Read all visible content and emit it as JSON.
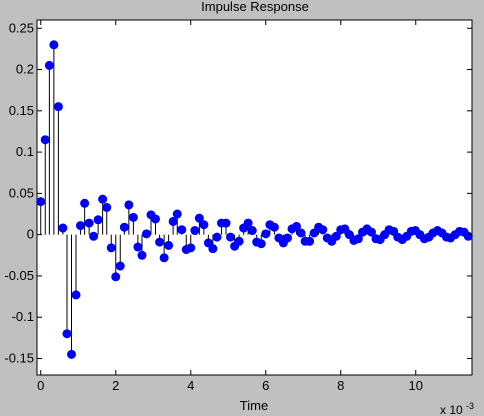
{
  "chart_data": {
    "type": "stem",
    "title": "Impulse Response",
    "xlabel": "Time",
    "x_exponent": "x 10",
    "x_exponent_power": "-3",
    "ylabel": "",
    "xlim": [
      -0.1,
      11.5
    ],
    "ylim": [
      -0.17,
      0.26
    ],
    "x_ticks": [
      {
        "value": 0,
        "label": "0"
      },
      {
        "value": 2,
        "label": "2"
      },
      {
        "value": 4,
        "label": "4"
      },
      {
        "value": 6,
        "label": "6"
      },
      {
        "value": 8,
        "label": "8"
      },
      {
        "value": 10,
        "label": "10"
      }
    ],
    "y_ticks": [
      {
        "value": 0.25,
        "label": "0.25"
      },
      {
        "value": 0.2,
        "label": "0.2"
      },
      {
        "value": 0.15,
        "label": "0.15"
      },
      {
        "value": 0.1,
        "label": "0.1"
      },
      {
        "value": 0.05,
        "label": "0.05"
      },
      {
        "value": 0,
        "label": "0"
      },
      {
        "value": -0.05,
        "label": "-0.05"
      },
      {
        "value": -0.1,
        "label": "-0.1"
      },
      {
        "value": -0.15,
        "label": "-0.15"
      }
    ],
    "grid": false,
    "marker_color": "#0000ff",
    "x": [
      0,
      0.12,
      0.23,
      0.35,
      0.47,
      0.59,
      0.7,
      0.82,
      0.94,
      1.06,
      1.17,
      1.29,
      1.41,
      1.53,
      1.65,
      1.76,
      1.88,
      2.0,
      2.12,
      2.23,
      2.35,
      2.47,
      2.59,
      2.7,
      2.82,
      2.94,
      3.06,
      3.17,
      3.29,
      3.41,
      3.53,
      3.64,
      3.76,
      3.88,
      4.0,
      4.11,
      4.23,
      4.35,
      4.47,
      4.59,
      4.7,
      4.82,
      4.94,
      5.06,
      5.17,
      5.29,
      5.41,
      5.53,
      5.64,
      5.76,
      5.88,
      6.0,
      6.11,
      6.23,
      6.35,
      6.47,
      6.58,
      6.7,
      6.82,
      6.94,
      7.05,
      7.17,
      7.29,
      7.41,
      7.52,
      7.64,
      7.76,
      7.88,
      8.0,
      8.11,
      8.23,
      8.35,
      8.47,
      8.58,
      8.7,
      8.82,
      8.94,
      9.05,
      9.17,
      9.29,
      9.41,
      9.52,
      9.64,
      9.76,
      9.88,
      9.99,
      10.11,
      10.23,
      10.35,
      10.46,
      10.58,
      10.7,
      10.82,
      10.93,
      11.05,
      11.17,
      11.29,
      11.4
    ],
    "y": [
      0.04,
      0.115,
      0.205,
      0.23,
      0.155,
      0.008,
      -0.12,
      -0.145,
      -0.073,
      0.011,
      0.038,
      0.014,
      -0.002,
      0.018,
      0.043,
      0.033,
      -0.016,
      -0.051,
      -0.038,
      0.009,
      0.036,
      0.021,
      -0.015,
      -0.025,
      0.001,
      0.024,
      0.019,
      -0.009,
      -0.028,
      -0.013,
      0.016,
      0.025,
      0.006,
      -0.018,
      -0.016,
      0.005,
      0.02,
      0.012,
      -0.01,
      -0.017,
      -0.003,
      0.014,
      0.014,
      -0.003,
      -0.014,
      -0.008,
      0.008,
      0.014,
      0.005,
      -0.009,
      -0.011,
      0.001,
      0.012,
      0.009,
      -0.004,
      -0.01,
      -0.004,
      0.007,
      0.01,
      0.002,
      -0.008,
      -0.008,
      0.002,
      0.009,
      0.006,
      -0.004,
      -0.008,
      -0.002,
      0.006,
      0.007,
      0.0,
      -0.007,
      -0.005,
      0.003,
      0.007,
      0.003,
      -0.005,
      -0.006,
      0.0,
      0.006,
      0.004,
      -0.003,
      -0.006,
      -0.002,
      0.004,
      0.005,
      0.0,
      -0.005,
      -0.003,
      0.002,
      0.005,
      0.002,
      -0.003,
      -0.004,
      0.0,
      0.004,
      0.003,
      -0.002
    ]
  }
}
